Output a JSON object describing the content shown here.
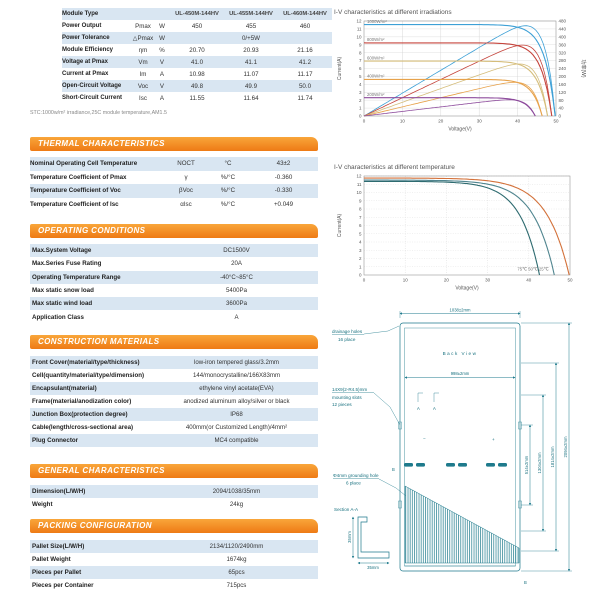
{
  "electrical": {
    "rows": [
      {
        "label": "Module Type",
        "symbol": "",
        "unit": "",
        "values": [
          "UL-450M-144HV",
          "UL-455M-144HV",
          "UL-460M-144HV"
        ]
      },
      {
        "label": "Power Output",
        "symbol": "Pmax",
        "unit": "W",
        "values": [
          "450",
          "455",
          "460"
        ]
      },
      {
        "label": "Power Tolerance",
        "symbol": "△Pmax",
        "unit": "W",
        "values": [
          "0/+5W"
        ]
      },
      {
        "label": "Module Efficiency",
        "symbol": "ηm",
        "unit": "%",
        "values": [
          "20.70",
          "20.93",
          "21.16"
        ]
      },
      {
        "label": "Voltage at Pmax",
        "symbol": "Vm",
        "unit": "V",
        "values": [
          "41.0",
          "41.1",
          "41.2"
        ]
      },
      {
        "label": "Current at Pmax",
        "symbol": "Im",
        "unit": "A",
        "values": [
          "10.98",
          "11.07",
          "11.17"
        ]
      },
      {
        "label": "Open-Circuit Voltage",
        "symbol": "Voc",
        "unit": "V",
        "values": [
          "49.8",
          "49.9",
          "50.0"
        ]
      },
      {
        "label": "Short-Circuit Current",
        "symbol": "Isc",
        "unit": "A",
        "values": [
          "11.55",
          "11.64",
          "11.74"
        ]
      }
    ],
    "footnote": "STC:1000w/m² irradiance,25C module temperature,AM1.5"
  },
  "sections": {
    "thermal": {
      "title": "THERMAL CHARACTERISTICS",
      "rows": [
        {
          "label": "Nominal Operating Cell Temperature",
          "symbol": "NOCT",
          "unit": "°C",
          "value": "43±2"
        },
        {
          "label": "Temperature Coefficient of Pmax",
          "symbol": "γ",
          "unit": "%/°C",
          "value": "-0.360"
        },
        {
          "label": "Temperature Coefficient of Voc",
          "symbol": "βVoc",
          "unit": "%/°C",
          "value": "-0.330"
        },
        {
          "label": "Temperature Coefficient of Isc",
          "symbol": "αIsc",
          "unit": "%/°C",
          "value": "+0.049"
        }
      ]
    },
    "operating": {
      "title": "OPERATING CONDITIONS",
      "rows": [
        {
          "label": "Max.System Voltage",
          "value": "DC1500V"
        },
        {
          "label": "Max.Series Fuse Rating",
          "value": "20A"
        },
        {
          "label": "Operating Temperature Range",
          "value": "-40°C~85°C"
        },
        {
          "label": "Max static snow load",
          "value": "5400Pa"
        },
        {
          "label": "Max static wind load",
          "value": "3600Pa"
        },
        {
          "label": "Application Class",
          "value": "A"
        }
      ]
    },
    "construction": {
      "title": "CONSTRUCTION MATERIALS",
      "rows": [
        {
          "label": "Front Cover(material/type/thickness)",
          "value": "low-iron tempered glass/3.2mm"
        },
        {
          "label": "Cell(quantity/material/type/dimension)",
          "value": "144/monocrystalline/166X83mm"
        },
        {
          "label": "Encapsulant(material)",
          "value": "ethylene vinyl acetate(EVA)"
        },
        {
          "label": "Frame(material/anodization color)",
          "value": "anodized aluminum alloy/silver or black"
        },
        {
          "label": "Junction Box(protection degree)",
          "value": "IP68"
        },
        {
          "label": "Cable(length/cross-sectional area)",
          "value": "400mm(or Customized Length)/4mm²"
        },
        {
          "label": "Plug Connector",
          "value": "MC4 compatible"
        }
      ]
    },
    "general": {
      "title": "GENERAL CHARACTERISTICS",
      "rows": [
        {
          "label": "Dimension(L/W/H)",
          "value": "2094/1038/35mm"
        },
        {
          "label": "Weight",
          "value": "24kg"
        }
      ]
    },
    "packing": {
      "title": "PACKING CONFIGURATION",
      "rows": [
        {
          "label": "Pallet Size(L/W/H)",
          "value": "2134/1120/2490mm"
        },
        {
          "label": "Pallet Weight",
          "value": "1674kg"
        },
        {
          "label": "Pieces per Pallet",
          "value": "65pcs"
        },
        {
          "label": "Pieces per Container",
          "value": "715pcs"
        }
      ]
    }
  },
  "chart_data": [
    {
      "type": "line",
      "title": "I-V characteristics at different irradiations",
      "xlabel": "Voltage(V)",
      "ylabel": "Current(A)",
      "y2label": "功率(W)",
      "xlim": [
        0,
        50
      ],
      "ylim": [
        0,
        12
      ],
      "y2lim": [
        0,
        480
      ],
      "x_ticks": [
        0,
        10,
        20,
        30,
        40,
        50
      ],
      "y_ticks": [
        0,
        1,
        2,
        3,
        4,
        5,
        6,
        7,
        8,
        9,
        10,
        11,
        12
      ],
      "y2_ticks": [
        0,
        40,
        80,
        120,
        160,
        200,
        240,
        280,
        320,
        360,
        400,
        440,
        480
      ],
      "grid": true,
      "series": [
        {
          "name": "1000W/m²",
          "isc": 11.55,
          "voc": 49.8,
          "pmax_w": 450,
          "color": "#3da0d6"
        },
        {
          "name": "800W/m²",
          "isc": 9.24,
          "voc": 48.9,
          "pmax_w": 362,
          "color": "#c5443c"
        },
        {
          "name": "600W/m²",
          "isc": 6.93,
          "voc": 47.8,
          "pmax_w": 270,
          "color": "#d5bd7b"
        },
        {
          "name": "400W/m²",
          "isc": 4.62,
          "voc": 46.4,
          "pmax_w": 178,
          "color": "#e7a24b"
        },
        {
          "name": "200W/m²",
          "isc": 2.31,
          "voc": 44.6,
          "pmax_w": 87,
          "color": "#8d4b9c"
        }
      ]
    },
    {
      "type": "line",
      "title": "I-V characteristics at different temperature",
      "xlabel": "Voltage(V)",
      "ylabel": "Current(A)",
      "xlim": [
        0,
        50
      ],
      "ylim": [
        0,
        12
      ],
      "x_ticks": [
        0,
        10,
        20,
        30,
        40,
        50
      ],
      "y_ticks": [
        0,
        1,
        2,
        3,
        4,
        5,
        6,
        7,
        8,
        9,
        10,
        11,
        12
      ],
      "grid": true,
      "annotation": "75℃ 50℃ 25℃",
      "series": [
        {
          "name": "75℃",
          "isc": 11.35,
          "voc": 42.6,
          "color": "#2e6b70"
        },
        {
          "name": "50℃",
          "isc": 11.5,
          "voc": 46.2,
          "color": "#50858f"
        },
        {
          "name": "25℃",
          "isc": 11.75,
          "voc": 49.8,
          "color": "#d3713a"
        }
      ]
    }
  ],
  "drawing": {
    "dim_top": "1038±2mm",
    "dim_inner": "998±2mm",
    "dim_v1": "514±2mm",
    "dim_v2": "1304±2mm",
    "dim_v3": "1814±2mm",
    "dim_v4": "2094±2mm",
    "back_view": "Back  View",
    "drainage_1": "drainage holes",
    "drainage_2": "16 place",
    "slots_1": "14X9(2-R4.5)mm",
    "slots_2": "mounting slots",
    "slots_3": "12 pieces",
    "grounding_1": "Φ4mm grounding hole",
    "grounding_2": "6 place",
    "section_label": "Section A-A",
    "section_height": "35mm",
    "section_width": "35mm",
    "plus": "+",
    "minus": "−",
    "mark_a": "A",
    "mark_b": "B"
  }
}
